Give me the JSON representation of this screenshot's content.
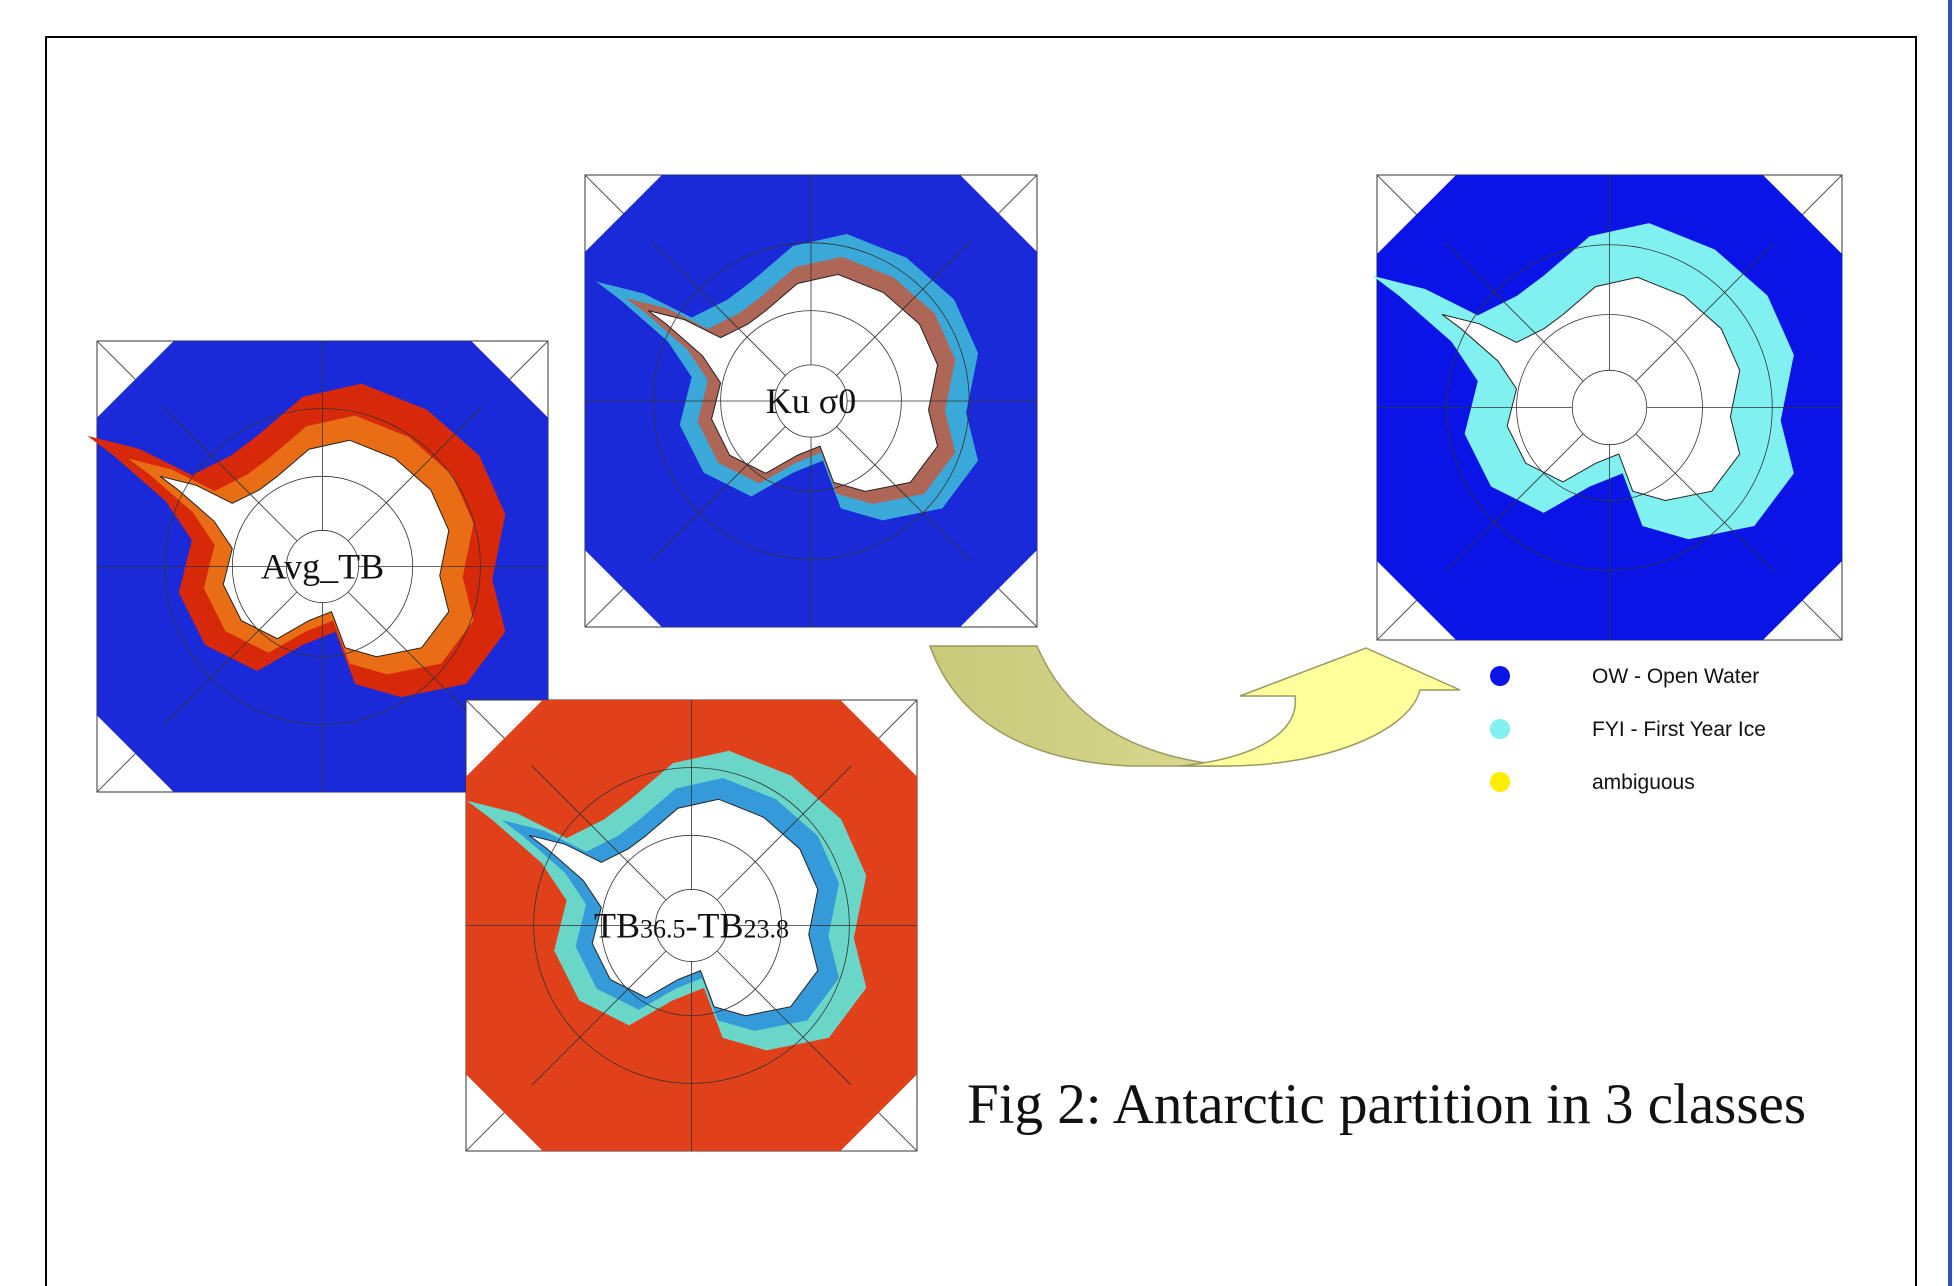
{
  "panels": [
    {
      "label": "Avg_TB"
    },
    {
      "label": "Ku σ0"
    },
    {
      "label_parts": [
        "TB",
        "36.5",
        "-TB",
        "23.8"
      ]
    },
    {}
  ],
  "legend": [
    {
      "label": "OW - Open Water",
      "color": "#0a14e6"
    },
    {
      "label": "FYI - First Year Ice",
      "color": "#80f0f0"
    },
    {
      "label": "ambiguous",
      "color": "#ffee00"
    }
  ],
  "caption": "Fig 2: Antarctic partition in 3 classes"
}
